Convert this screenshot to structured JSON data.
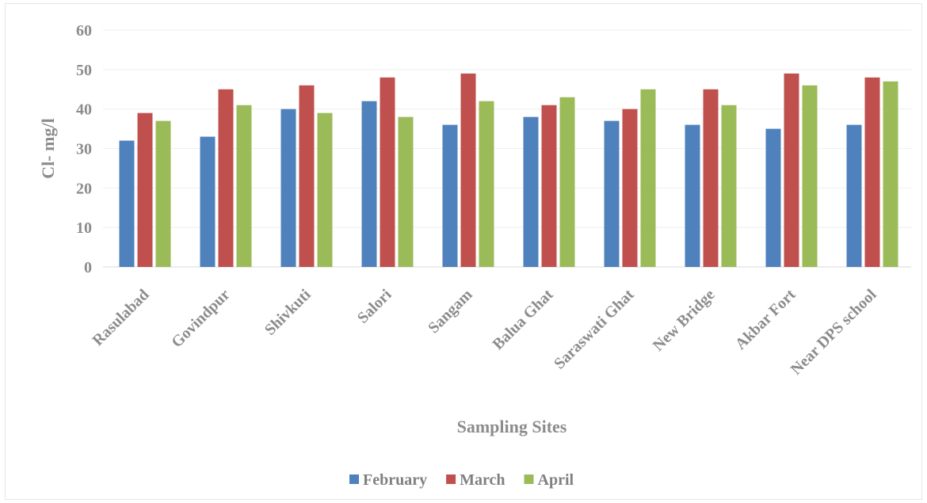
{
  "chart_data": {
    "type": "bar",
    "title": "",
    "xlabel": "Sampling Sites",
    "ylabel": "Cl- mg/l",
    "ylim": [
      0,
      60
    ],
    "yticks": [
      0,
      10,
      20,
      30,
      40,
      50,
      60
    ],
    "grid": true,
    "legend_position": "bottom",
    "categories": [
      "Rasulabad",
      "Govindpur",
      "Shivkuti",
      "Salori",
      "Sangam",
      "Balua Ghat",
      "Saraswati Ghat",
      "New Bridge",
      "Akbar Fort",
      "Near DPS school"
    ],
    "series": [
      {
        "name": "February",
        "color": "#4f81bd",
        "values": [
          32,
          33,
          40,
          42,
          36,
          38,
          37,
          36,
          35,
          36
        ]
      },
      {
        "name": "March",
        "color": "#c0504d",
        "values": [
          39,
          45,
          46,
          48,
          49,
          41,
          40,
          45,
          49,
          48
        ]
      },
      {
        "name": "April",
        "color": "#9bbb59",
        "values": [
          37,
          41,
          39,
          38,
          42,
          43,
          45,
          41,
          46,
          47
        ]
      }
    ]
  }
}
